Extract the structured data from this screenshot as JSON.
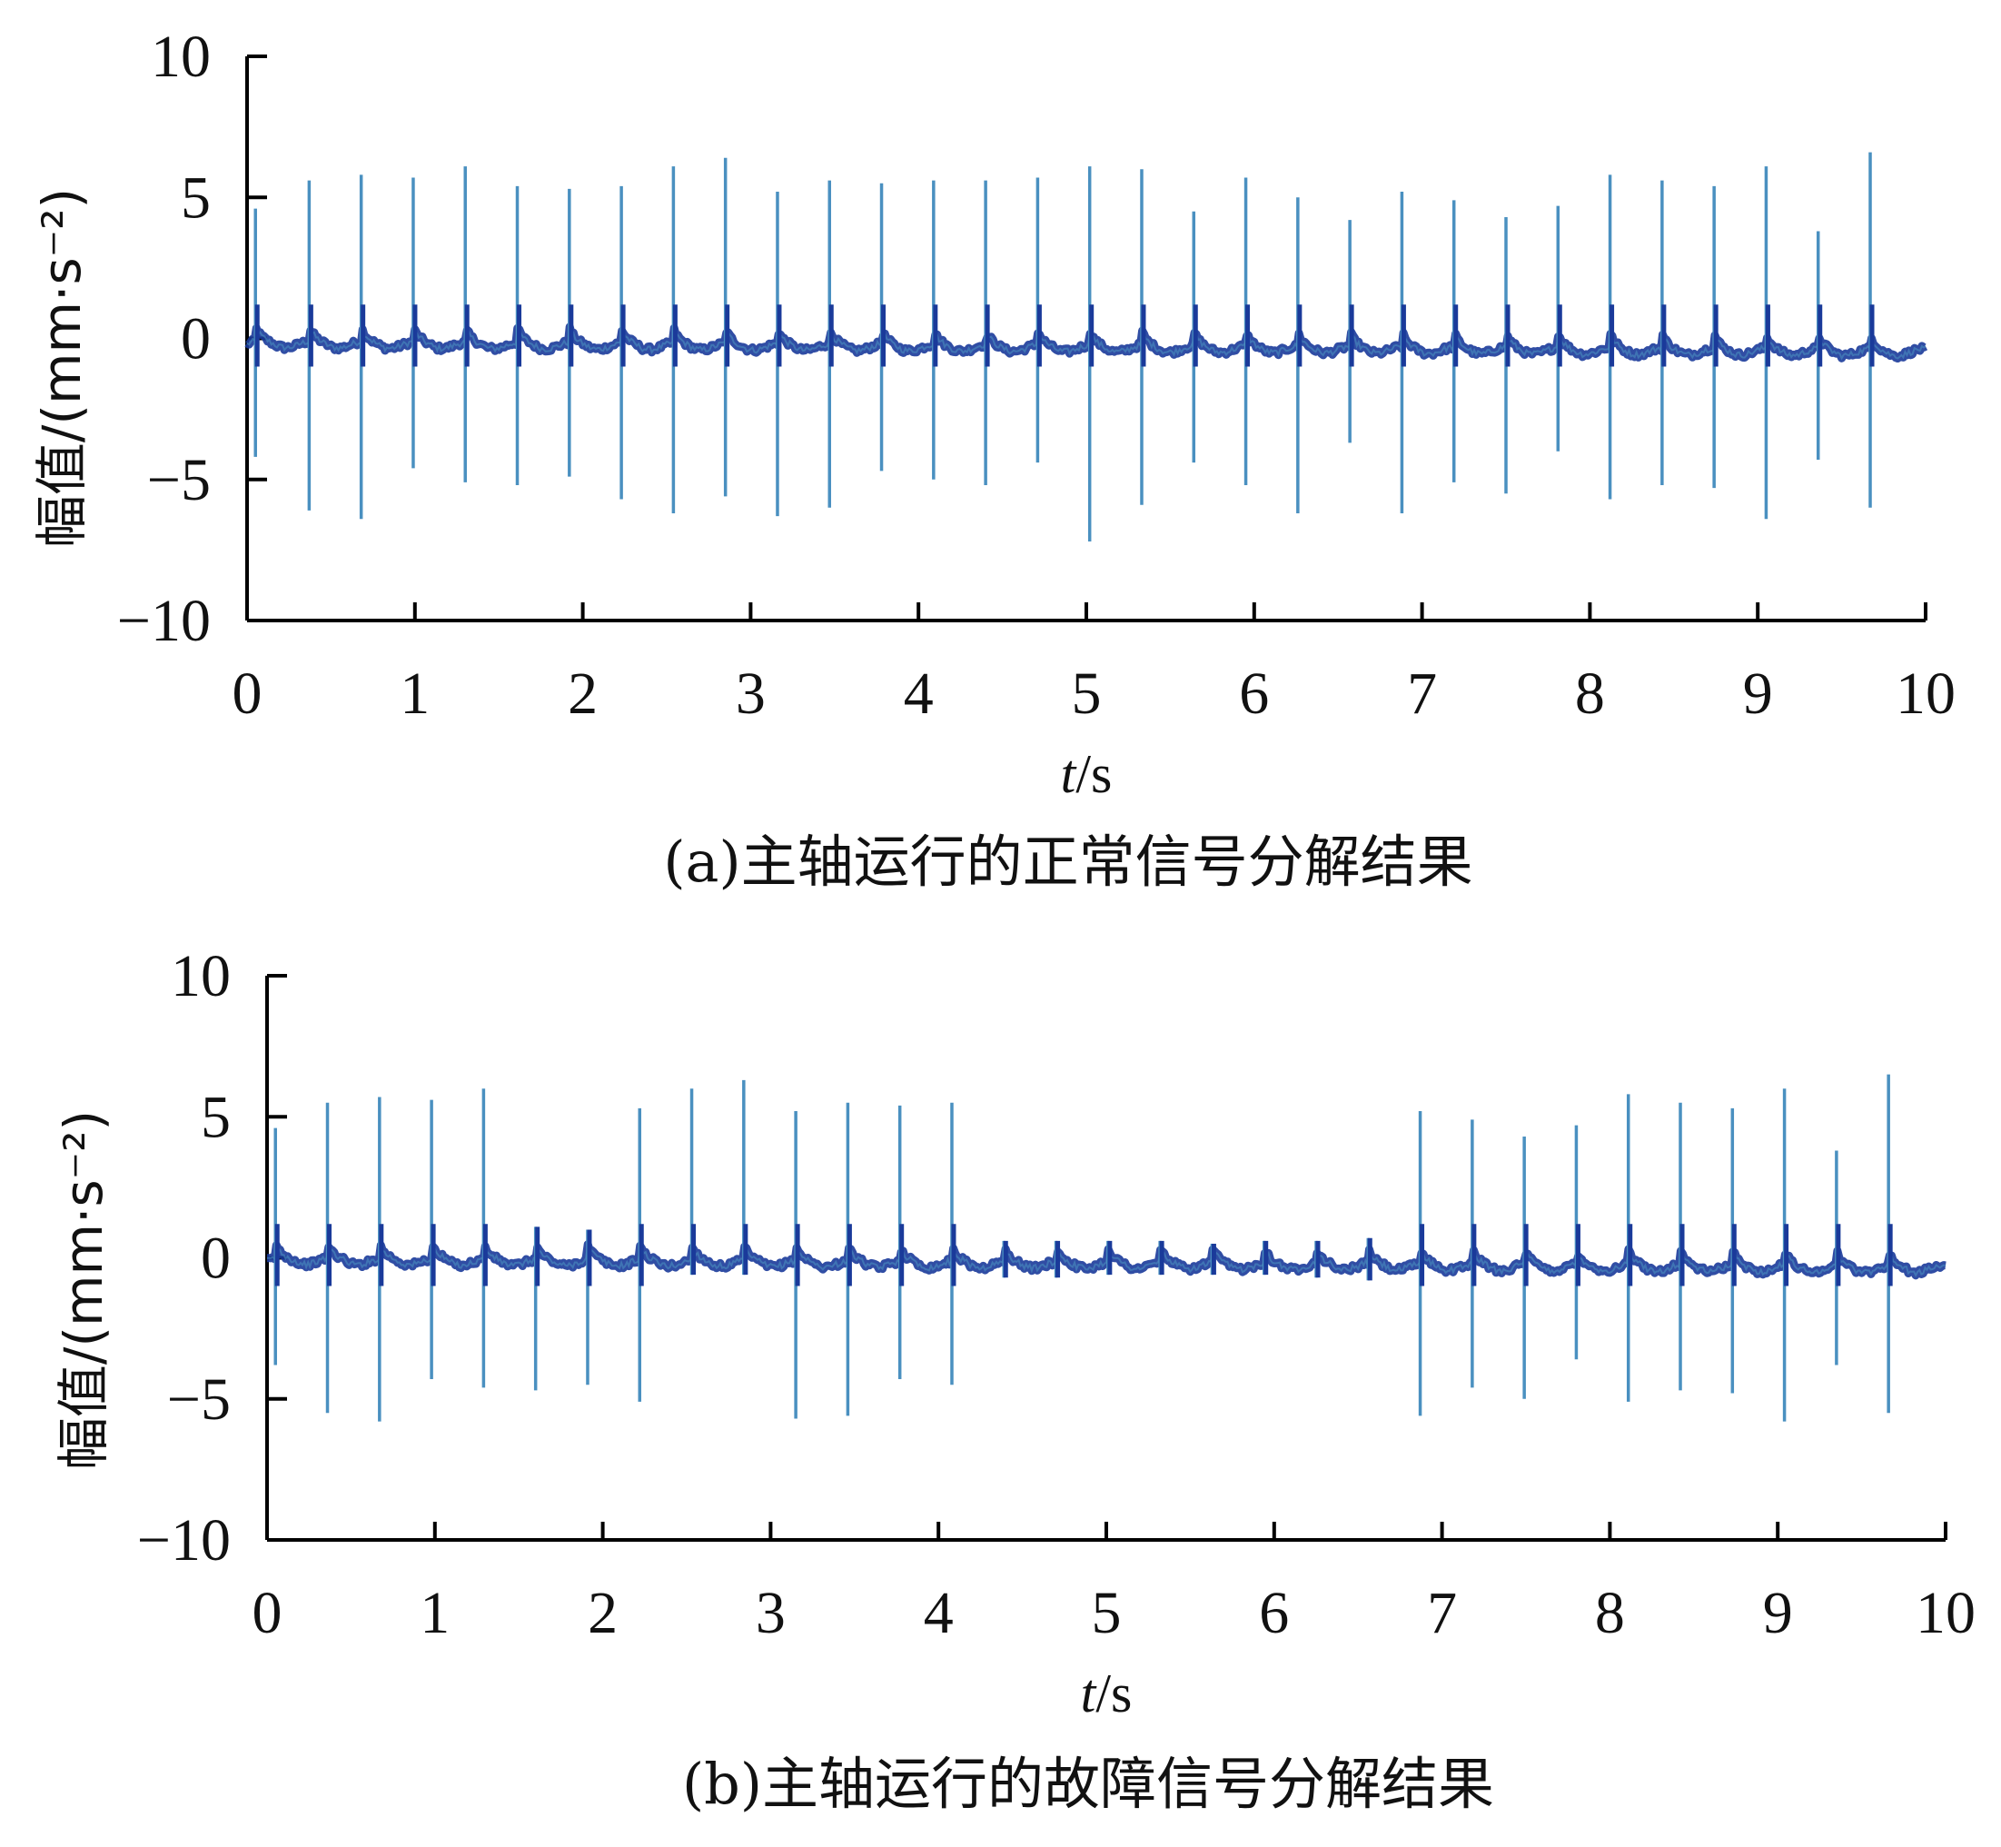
{
  "chart_data": [
    {
      "type": "line",
      "caption": "(a)主轴运行的正常信号分解结果",
      "xlabel_italic": "t",
      "xlabel_rest": "/s",
      "ylabel": "幅值/(mm·s⁻²)",
      "xlim": [
        0,
        10
      ],
      "ylim": [
        -10,
        10
      ],
      "xticks": [
        "0",
        "1",
        "2",
        "3",
        "4",
        "5",
        "6",
        "7",
        "8",
        "9",
        "10"
      ],
      "yticks": [
        "10",
        "5",
        "0",
        "−5",
        "−10"
      ],
      "ytick_values": [
        10,
        5,
        0,
        -5,
        -10
      ],
      "grid": false,
      "colors": {
        "spike": "#4a90c0",
        "baseline": "#1a3a9a"
      },
      "baseline": {
        "start": -0.2,
        "end": -0.5
      },
      "impulses": [
        {
          "t": 0.05,
          "pos": 4.6,
          "neg": -4.2
        },
        {
          "t": 0.37,
          "pos": 5.6,
          "neg": -6.1
        },
        {
          "t": 0.68,
          "pos": 5.8,
          "neg": -6.4
        },
        {
          "t": 0.99,
          "pos": 5.7,
          "neg": -4.6
        },
        {
          "t": 1.3,
          "pos": 6.1,
          "neg": -5.1
        },
        {
          "t": 1.61,
          "pos": 5.4,
          "neg": -5.2
        },
        {
          "t": 1.92,
          "pos": 5.3,
          "neg": -4.9
        },
        {
          "t": 2.23,
          "pos": 5.4,
          "neg": -5.7
        },
        {
          "t": 2.54,
          "pos": 6.1,
          "neg": -6.2
        },
        {
          "t": 2.85,
          "pos": 6.4,
          "neg": -5.6
        },
        {
          "t": 3.16,
          "pos": 5.2,
          "neg": -6.3
        },
        {
          "t": 3.47,
          "pos": 5.6,
          "neg": -6.0
        },
        {
          "t": 3.78,
          "pos": 5.5,
          "neg": -4.7
        },
        {
          "t": 4.09,
          "pos": 5.6,
          "neg": -5.0
        },
        {
          "t": 4.4,
          "pos": 5.6,
          "neg": -5.2
        },
        {
          "t": 4.71,
          "pos": 5.7,
          "neg": -4.4
        },
        {
          "t": 5.02,
          "pos": 6.1,
          "neg": -7.2
        },
        {
          "t": 5.33,
          "pos": 6.0,
          "neg": -5.9
        },
        {
          "t": 5.64,
          "pos": 4.5,
          "neg": -4.4
        },
        {
          "t": 5.95,
          "pos": 5.7,
          "neg": -5.2
        },
        {
          "t": 6.26,
          "pos": 5.0,
          "neg": -6.2
        },
        {
          "t": 6.57,
          "pos": 4.2,
          "neg": -3.7
        },
        {
          "t": 6.88,
          "pos": 5.2,
          "neg": -6.2
        },
        {
          "t": 7.19,
          "pos": 4.9,
          "neg": -5.1
        },
        {
          "t": 7.5,
          "pos": 4.3,
          "neg": -5.5
        },
        {
          "t": 7.81,
          "pos": 4.7,
          "neg": -4.0
        },
        {
          "t": 8.12,
          "pos": 5.8,
          "neg": -5.7
        },
        {
          "t": 8.43,
          "pos": 5.6,
          "neg": -5.2
        },
        {
          "t": 8.74,
          "pos": 5.4,
          "neg": -5.3
        },
        {
          "t": 9.05,
          "pos": 6.1,
          "neg": -6.4
        },
        {
          "t": 9.36,
          "pos": 3.8,
          "neg": -4.3
        },
        {
          "t": 9.67,
          "pos": 6.6,
          "neg": -6.0
        }
      ]
    },
    {
      "type": "line",
      "caption": "(b)主轴运行的故障信号分解结果",
      "xlabel_italic": "t",
      "xlabel_rest": "/s",
      "ylabel": "幅值/(mm·s⁻²)",
      "xlim": [
        0,
        10
      ],
      "ylim": [
        -10,
        10
      ],
      "xticks": [
        "0",
        "1",
        "2",
        "3",
        "4",
        "5",
        "6",
        "7",
        "8",
        "9",
        "10"
      ],
      "yticks": [
        "10",
        "5",
        "0",
        "−5",
        "−10"
      ],
      "ytick_values": [
        10,
        5,
        0,
        -5,
        -10
      ],
      "grid": false,
      "colors": {
        "spike": "#4a90c0",
        "baseline": "#1a3a9a"
      },
      "baseline": {
        "start": -0.1,
        "end": -0.4
      },
      "impulses": [
        {
          "t": 0.05,
          "pos": 4.6,
          "neg": -3.8
        },
        {
          "t": 0.36,
          "pos": 5.5,
          "neg": -5.5
        },
        {
          "t": 0.67,
          "pos": 5.7,
          "neg": -5.8
        },
        {
          "t": 0.98,
          "pos": 5.6,
          "neg": -4.3
        },
        {
          "t": 1.29,
          "pos": 6.0,
          "neg": -4.6
        },
        {
          "t": 1.6,
          "pos": 1.1,
          "neg": -4.7
        },
        {
          "t": 1.91,
          "pos": 1.0,
          "neg": -4.5
        },
        {
          "t": 2.22,
          "pos": 5.3,
          "neg": -5.1
        },
        {
          "t": 2.53,
          "pos": 6.0,
          "neg": -0.6
        },
        {
          "t": 2.84,
          "pos": 6.3,
          "neg": -0.6
        },
        {
          "t": 3.15,
          "pos": 5.2,
          "neg": -5.7
        },
        {
          "t": 3.46,
          "pos": 5.5,
          "neg": -5.6
        },
        {
          "t": 3.77,
          "pos": 5.4,
          "neg": -4.3
        },
        {
          "t": 4.08,
          "pos": 5.5,
          "neg": -4.5
        },
        {
          "t": 4.39,
          "pos": 0.6,
          "neg": -0.7
        },
        {
          "t": 4.7,
          "pos": 0.6,
          "neg": -0.7
        },
        {
          "t": 5.01,
          "pos": 0.6,
          "neg": -0.6
        },
        {
          "t": 5.32,
          "pos": 0.6,
          "neg": -0.6
        },
        {
          "t": 5.63,
          "pos": 0.5,
          "neg": -0.6
        },
        {
          "t": 5.94,
          "pos": 0.6,
          "neg": -0.6
        },
        {
          "t": 6.25,
          "pos": 0.6,
          "neg": -0.7
        },
        {
          "t": 6.56,
          "pos": 0.7,
          "neg": -0.8
        },
        {
          "t": 6.87,
          "pos": 5.2,
          "neg": -5.6
        },
        {
          "t": 7.18,
          "pos": 4.9,
          "neg": -4.6
        },
        {
          "t": 7.49,
          "pos": 4.3,
          "neg": -5.0
        },
        {
          "t": 7.8,
          "pos": 4.7,
          "neg": -3.6
        },
        {
          "t": 8.11,
          "pos": 5.8,
          "neg": -5.1
        },
        {
          "t": 8.42,
          "pos": 5.5,
          "neg": -4.7
        },
        {
          "t": 8.73,
          "pos": 5.3,
          "neg": -4.8
        },
        {
          "t": 9.04,
          "pos": 6.0,
          "neg": -5.8
        },
        {
          "t": 9.35,
          "pos": 3.8,
          "neg": -3.8
        },
        {
          "t": 9.66,
          "pos": 6.5,
          "neg": -5.5
        }
      ]
    }
  ]
}
